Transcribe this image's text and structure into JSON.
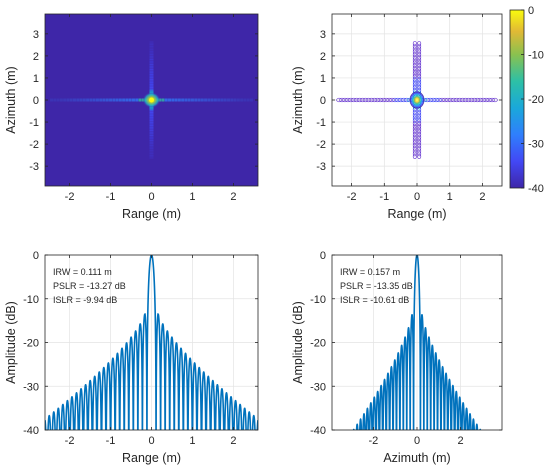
{
  "chart_data": [
    {
      "type": "heatmap",
      "panel": "top-left",
      "xlabel": "Range (m)",
      "ylabel": "Azimuth (m)",
      "xlim": [
        -2.6,
        2.6
      ],
      "ylim": [
        -3.9,
        3.9
      ],
      "xticks": [
        -2,
        -1,
        0,
        1,
        2
      ],
      "yticks": [
        -3,
        -2,
        -1,
        0,
        1,
        2,
        3
      ],
      "xtick_labels": [
        "-2",
        "-1",
        "0",
        "1",
        "2"
      ],
      "ytick_labels": [
        "-3",
        "-2",
        "-1",
        "0",
        "1",
        "2",
        "3"
      ],
      "peak": {
        "x": 0,
        "y": 0,
        "value_db": 0
      },
      "background_db": -40,
      "grid": false
    },
    {
      "type": "heatmap",
      "panel": "top-right",
      "style": "contour",
      "xlabel": "Range (m)",
      "ylabel": "Azimuth (m)",
      "xlim": [
        -2.6,
        2.6
      ],
      "ylim": [
        -3.9,
        3.9
      ],
      "xticks": [
        -2,
        -1,
        0,
        1,
        2
      ],
      "yticks": [
        -3,
        -2,
        -1,
        0,
        1,
        2,
        3
      ],
      "xtick_labels": [
        "-2",
        "-1",
        "0",
        "1",
        "2"
      ],
      "ytick_labels": [
        "-3",
        "-2",
        "-1",
        "0",
        "1",
        "2",
        "3"
      ],
      "colorbar": {
        "range": [
          -40,
          0
        ],
        "ticks": [
          0,
          -10,
          -20,
          -30,
          -40
        ],
        "tick_labels": [
          "0",
          "-10",
          "-20",
          "-30",
          "-40"
        ],
        "colormap": "parula"
      },
      "grid": true
    },
    {
      "type": "line",
      "panel": "bottom-left",
      "xlabel": "Range (m)",
      "ylabel": "Amplitude (dB)",
      "xlim": [
        -2.6,
        2.6
      ],
      "ylim": [
        -40,
        0
      ],
      "xticks": [
        -2,
        -1,
        0,
        1,
        2
      ],
      "yticks": [
        0,
        -10,
        -20,
        -30,
        -40
      ],
      "xtick_labels": [
        "-2",
        "-1",
        "0",
        "1",
        "2"
      ],
      "ytick_labels": [
        "0",
        "-10",
        "-20",
        "-30",
        "-40"
      ],
      "annotations": [
        "IRW  = 0.111 m",
        "PSLR = -13.27 dB",
        "ISLR  = -9.94 dB"
      ],
      "resolution_m": 0.111,
      "pslr_db": -13.27,
      "envelope_floor_db": -37.5,
      "color": "#0072BD",
      "grid": true
    },
    {
      "type": "line",
      "panel": "bottom-right",
      "xlabel": "Azimuth (m)",
      "ylabel": "Amplitude (dB)",
      "xlim": [
        -3.9,
        3.9
      ],
      "ylim": [
        -40,
        0
      ],
      "xticks": [
        -2,
        0,
        2
      ],
      "yticks": [
        0,
        -10,
        -20,
        -30,
        -40
      ],
      "xtick_labels": [
        "-2",
        "0",
        "2"
      ],
      "ytick_labels": [
        "0",
        "-10",
        "-20",
        "-30",
        "-40"
      ],
      "annotations": [
        "IRW  = 0.157 m",
        "PSLR = -13.35 dB",
        "ISLR  = -10.61 dB"
      ],
      "resolution_m": 0.157,
      "pslr_db": -13.35,
      "envelope_floor_db": -47,
      "color": "#0072BD",
      "grid": true
    }
  ]
}
